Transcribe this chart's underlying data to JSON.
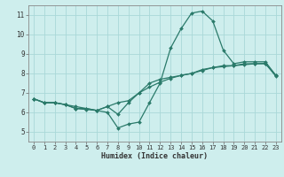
{
  "title": "",
  "xlabel": "Humidex (Indice chaleur)",
  "background_color": "#ceeeed",
  "grid_color": "#aad8d8",
  "line_color": "#2a7a6a",
  "xlim": [
    -0.5,
    23.5
  ],
  "ylim": [
    4.5,
    11.5
  ],
  "xticks": [
    0,
    1,
    2,
    3,
    4,
    5,
    6,
    7,
    8,
    9,
    10,
    11,
    12,
    13,
    14,
    15,
    16,
    17,
    18,
    19,
    20,
    21,
    22,
    23
  ],
  "yticks": [
    5,
    6,
    7,
    8,
    9,
    10,
    11
  ],
  "line1_x": [
    0,
    1,
    2,
    3,
    4,
    5,
    6,
    7,
    8,
    9,
    10,
    11,
    12,
    13,
    14,
    15,
    16,
    17,
    18,
    19,
    20,
    21,
    22,
    23
  ],
  "line1_y": [
    6.7,
    6.5,
    6.5,
    6.4,
    6.3,
    6.2,
    6.1,
    6.0,
    5.2,
    5.4,
    5.5,
    6.5,
    7.5,
    9.3,
    10.3,
    11.1,
    11.2,
    10.7,
    9.2,
    8.5,
    8.6,
    8.6,
    8.6,
    7.9
  ],
  "line2_x": [
    0,
    1,
    2,
    3,
    4,
    5,
    6,
    7,
    8,
    9,
    10,
    11,
    12,
    13,
    14,
    15,
    16,
    17,
    18,
    19,
    20,
    21,
    22,
    23
  ],
  "line2_y": [
    6.7,
    6.5,
    6.5,
    6.4,
    6.2,
    6.15,
    6.1,
    6.3,
    5.9,
    6.5,
    7.0,
    7.5,
    7.7,
    7.8,
    7.9,
    8.0,
    8.2,
    8.3,
    8.4,
    8.4,
    8.5,
    8.5,
    8.5,
    7.9
  ],
  "line3_x": [
    0,
    1,
    2,
    3,
    4,
    5,
    6,
    7,
    8,
    9,
    10,
    11,
    12,
    13,
    14,
    15,
    16,
    17,
    18,
    19,
    20,
    21,
    22,
    23
  ],
  "line3_y": [
    6.7,
    6.5,
    6.5,
    6.4,
    6.2,
    6.2,
    6.1,
    6.3,
    6.5,
    6.6,
    7.0,
    7.3,
    7.55,
    7.75,
    7.9,
    8.0,
    8.15,
    8.3,
    8.35,
    8.4,
    8.45,
    8.5,
    8.52,
    7.85
  ],
  "xlabel_fontsize": 6.0,
  "tick_fontsize_x": 5.0,
  "tick_fontsize_y": 5.5
}
